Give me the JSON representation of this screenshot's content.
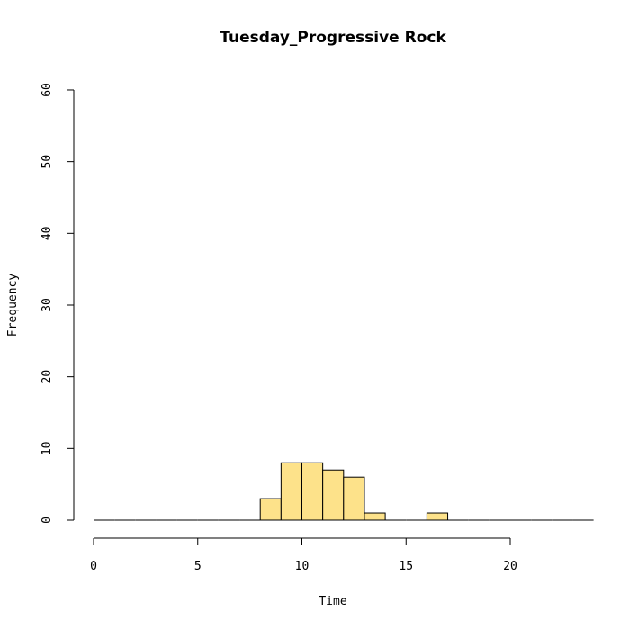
{
  "chart_data": {
    "type": "bar",
    "subtype": "histogram",
    "title": "Tuesday_Progressive Rock",
    "xlabel": "Time",
    "ylabel": "Frequency",
    "bar_color": "#FDE28A",
    "xlim": [
      0,
      24
    ],
    "ylim": [
      0,
      60
    ],
    "x_ticks": [
      0,
      5,
      10,
      15,
      20
    ],
    "y_ticks": [
      0,
      10,
      20,
      30,
      40,
      50,
      60
    ],
    "bins": [
      {
        "start": 0,
        "end": 1,
        "count": 0
      },
      {
        "start": 1,
        "end": 2,
        "count": 0
      },
      {
        "start": 2,
        "end": 3,
        "count": 0
      },
      {
        "start": 3,
        "end": 4,
        "count": 0
      },
      {
        "start": 4,
        "end": 5,
        "count": 0
      },
      {
        "start": 5,
        "end": 6,
        "count": 0
      },
      {
        "start": 6,
        "end": 7,
        "count": 0
      },
      {
        "start": 7,
        "end": 8,
        "count": 0
      },
      {
        "start": 8,
        "end": 9,
        "count": 3
      },
      {
        "start": 9,
        "end": 10,
        "count": 8
      },
      {
        "start": 10,
        "end": 11,
        "count": 8
      },
      {
        "start": 11,
        "end": 12,
        "count": 7
      },
      {
        "start": 12,
        "end": 13,
        "count": 6
      },
      {
        "start": 13,
        "end": 14,
        "count": 1
      },
      {
        "start": 14,
        "end": 15,
        "count": 0
      },
      {
        "start": 15,
        "end": 16,
        "count": 0
      },
      {
        "start": 16,
        "end": 17,
        "count": 1
      },
      {
        "start": 17,
        "end": 18,
        "count": 0
      },
      {
        "start": 18,
        "end": 19,
        "count": 0
      },
      {
        "start": 19,
        "end": 20,
        "count": 0
      },
      {
        "start": 20,
        "end": 21,
        "count": 0
      },
      {
        "start": 21,
        "end": 22,
        "count": 0
      },
      {
        "start": 22,
        "end": 23,
        "count": 0
      },
      {
        "start": 23,
        "end": 24,
        "count": 0
      }
    ]
  }
}
